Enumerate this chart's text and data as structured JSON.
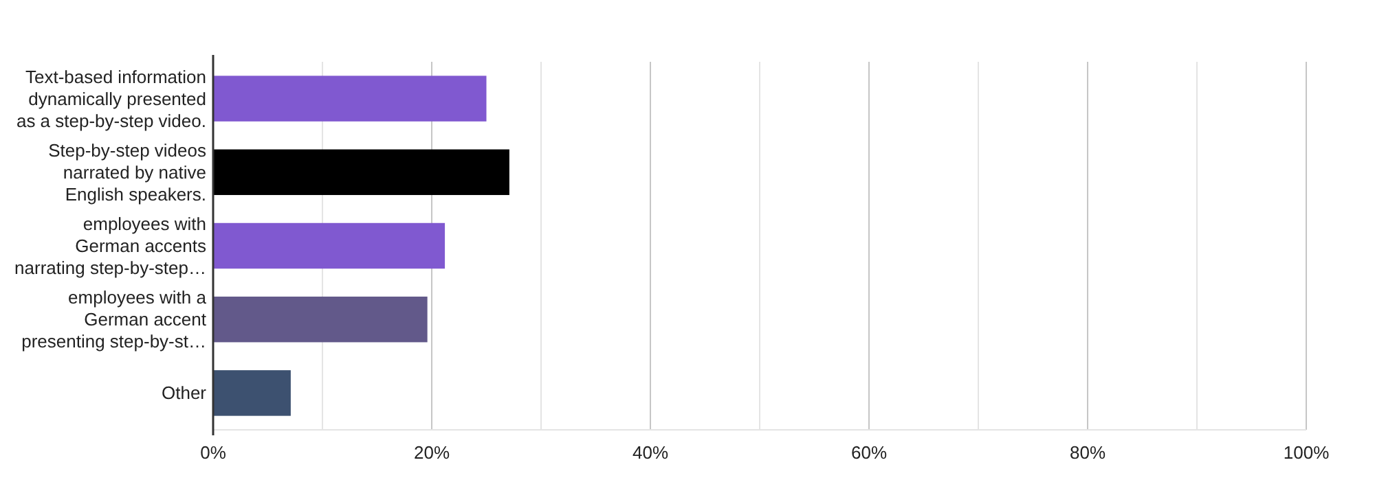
{
  "chart_data": {
    "type": "bar",
    "orientation": "horizontal",
    "categories": [
      "Text-based information dynamically presented as a step-by-step video.",
      "Step-by-step videos narrated by native English speakers.",
      "employees with German accents narrating step-by-step…",
      "employees with a German accent presenting step-by-st…",
      "Other"
    ],
    "values": [
      25,
      27.1,
      21.2,
      19.6,
      7.1
    ],
    "colors": [
      "#8059d0",
      "#000000",
      "#8059d0",
      "#62598a",
      "#3d5170"
    ],
    "xlim": [
      0,
      100
    ],
    "xticks": [
      {
        "value": 0,
        "label": "0%"
      },
      {
        "value": 10,
        "label": null
      },
      {
        "value": 20,
        "label": "20%"
      },
      {
        "value": 30,
        "label": null
      },
      {
        "value": 40,
        "label": "40%"
      },
      {
        "value": 50,
        "label": null
      },
      {
        "value": 60,
        "label": "60%"
      },
      {
        "value": 70,
        "label": null
      },
      {
        "value": 80,
        "label": "80%"
      },
      {
        "value": 90,
        "label": null
      },
      {
        "value": 100,
        "label": "100%"
      }
    ],
    "grid": "x"
  }
}
